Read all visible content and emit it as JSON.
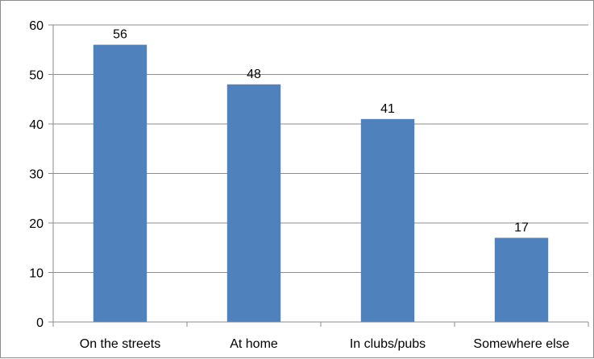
{
  "chart_data": {
    "type": "bar",
    "categories": [
      "On the streets",
      "At home",
      "In clubs/pubs",
      "Somewhere else"
    ],
    "values": [
      56,
      48,
      41,
      17
    ],
    "data_labels": [
      "56",
      "48",
      "41",
      "17"
    ],
    "y_ticks": [
      "0",
      "10",
      "20",
      "30",
      "40",
      "50",
      "60"
    ],
    "ylim": [
      0,
      60
    ],
    "grid": true,
    "legend": "none",
    "title": "",
    "xlabel": "",
    "ylabel": "",
    "colors": {
      "bar": "#4f81bd",
      "grid": "#8c8c8c",
      "axis": "#8c8c8c"
    }
  }
}
